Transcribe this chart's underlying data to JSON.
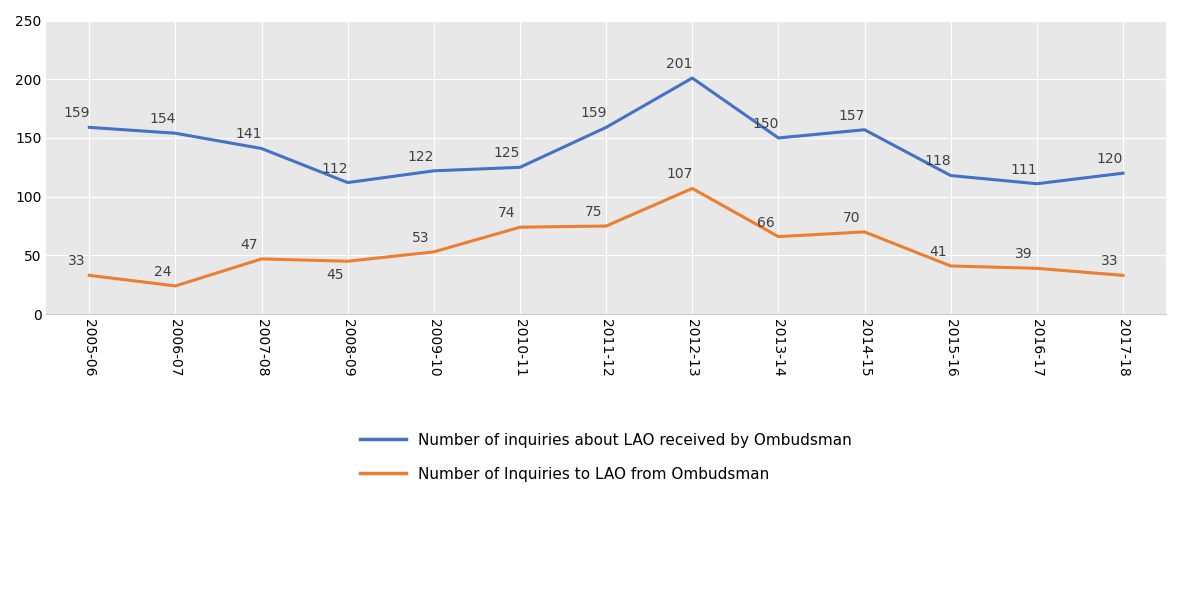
{
  "years": [
    "2005-06",
    "2006-07",
    "2007-08",
    "2008-09",
    "2009-10",
    "2010-11",
    "2011-12",
    "2012-13",
    "2013-14",
    "2014-15",
    "2015-16",
    "2016-17",
    "2017-18"
  ],
  "received": [
    159,
    154,
    141,
    112,
    122,
    125,
    159,
    201,
    150,
    157,
    118,
    111,
    120
  ],
  "inquiries": [
    33,
    24,
    47,
    45,
    53,
    74,
    75,
    107,
    66,
    70,
    41,
    39,
    33
  ],
  "received_color": "#4472C4",
  "inquiries_color": "#ED7D31",
  "received_label": "Number of inquiries about LAO received by Ombudsman",
  "inquiries_label": "Number of Inquiries to LAO from Ombudsman",
  "ylim": [
    0,
    250
  ],
  "yticks": [
    0,
    50,
    100,
    150,
    200,
    250
  ],
  "plot_bg_color": "#e8e8e8",
  "fig_bg_color": "#ffffff",
  "grid_color": "#ffffff",
  "line_width": 2.2,
  "figsize": [
    11.81,
    6.14
  ],
  "dpi": 100,
  "label_fontsize": 10,
  "tick_fontsize": 10,
  "legend_fontsize": 11
}
